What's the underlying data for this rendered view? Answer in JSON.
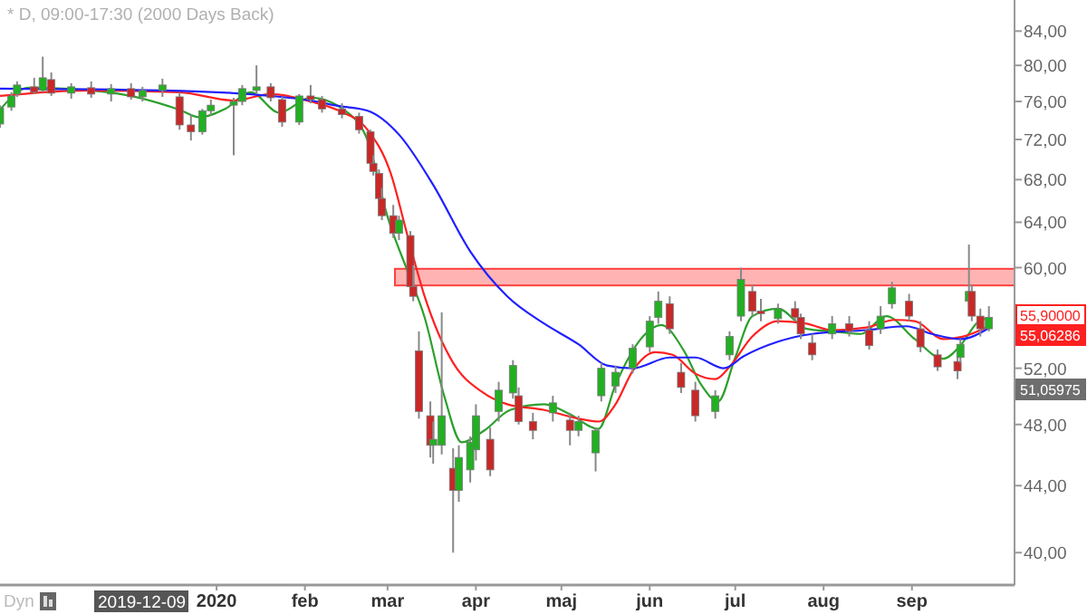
{
  "chart_data": {
    "type": "candlestick",
    "title": "* D, 09:00-17:30 (2000 Days Back)",
    "x": [
      "2019-10-17",
      "2019-10-21",
      "2019-10-23",
      "2019-10-29",
      "2019-11-01",
      "2019-11-04",
      "2019-11-11",
      "2019-11-18",
      "2019-11-25",
      "2019-12-02",
      "2019-12-06",
      "2019-12-13",
      "2019-12-19",
      "2019-12-23",
      "2019-12-27",
      "2019-12-30",
      "2020-01-07",
      "2020-01-10",
      "2020-01-15",
      "2020-01-20",
      "2020-01-24",
      "2020-01-30",
      "2020-02-03",
      "2020-02-07",
      "2020-02-14",
      "2020-02-20",
      "2020-02-24",
      "2020-02-25",
      "2020-02-27",
      "2020-02-28",
      "2020-03-03",
      "2020-03-05",
      "2020-03-09",
      "2020-03-10",
      "2020-03-12",
      "2020-03-16",
      "2020-03-17",
      "2020-03-20",
      "2020-03-24",
      "2020-03-26",
      "2020-03-30",
      "2020-04-01",
      "2020-04-06",
      "2020-04-09",
      "2020-04-14",
      "2020-04-16",
      "2020-04-21",
      "2020-04-28",
      "2020-05-04",
      "2020-05-07",
      "2020-05-13",
      "2020-05-15",
      "2020-05-20",
      "2020-05-26",
      "2020-06-01",
      "2020-06-04",
      "2020-06-08",
      "2020-06-12",
      "2020-06-17",
      "2020-06-24",
      "2020-06-29",
      "2020-07-03",
      "2020-07-07",
      "2020-07-10",
      "2020-07-16",
      "2020-07-22",
      "2020-07-24",
      "2020-07-28",
      "2020-08-04",
      "2020-08-10",
      "2020-08-17",
      "2020-08-21",
      "2020-08-25",
      "2020-08-31",
      "2020-09-04",
      "2020-09-10",
      "2020-09-17",
      "2020-09-18",
      "2020-09-21",
      "2020-09-22",
      "2020-09-25",
      "2020-09-28"
    ],
    "ohlc": [
      [
        73.6,
        75.6,
        73.2,
        75.3
      ],
      [
        75.4,
        77.0,
        75.0,
        76.6
      ],
      [
        76.8,
        78.2,
        76.5,
        77.8
      ],
      [
        77.6,
        78.6,
        76.8,
        77.0
      ],
      [
        77.2,
        81.0,
        77.0,
        78.6
      ],
      [
        78.4,
        79.2,
        76.6,
        76.9
      ],
      [
        76.9,
        78.0,
        76.3,
        77.6
      ],
      [
        77.5,
        78.2,
        76.4,
        76.8
      ],
      [
        76.8,
        77.9,
        76.0,
        77.4
      ],
      [
        77.4,
        78.0,
        76.2,
        76.5
      ],
      [
        76.5,
        77.6,
        76.0,
        77.2
      ],
      [
        77.2,
        78.5,
        76.5,
        77.8
      ],
      [
        76.5,
        77.0,
        73.0,
        73.5
      ],
      [
        73.5,
        74.6,
        71.9,
        72.8
      ],
      [
        72.8,
        75.2,
        72.5,
        75.0
      ],
      [
        75.0,
        76.2,
        74.5,
        75.6
      ],
      [
        75.6,
        76.4,
        70.4,
        76.0
      ],
      [
        76.0,
        77.8,
        75.6,
        77.4
      ],
      [
        77.2,
        80.0,
        76.8,
        77.6
      ],
      [
        77.6,
        78.0,
        76.0,
        76.4
      ],
      [
        76.2,
        76.5,
        73.3,
        73.8
      ],
      [
        73.8,
        76.8,
        73.5,
        76.6
      ],
      [
        76.6,
        77.8,
        75.8,
        76.2
      ],
      [
        76.2,
        76.6,
        74.8,
        75.2
      ],
      [
        75.2,
        75.8,
        74.2,
        74.6
      ],
      [
        74.4,
        74.8,
        72.6,
        73.0
      ],
      [
        72.8,
        73.0,
        69.2,
        69.6
      ],
      [
        69.6,
        70.4,
        68.4,
        68.8
      ],
      [
        68.6,
        69.0,
        65.8,
        66.2
      ],
      [
        66.2,
        67.2,
        64.2,
        64.6
      ],
      [
        64.6,
        65.6,
        62.6,
        63.0
      ],
      [
        63.0,
        64.6,
        62.4,
        64.2
      ],
      [
        62.8,
        63.2,
        58.0,
        58.4
      ],
      [
        58.4,
        60.2,
        57.2,
        57.6
      ],
      [
        53.3,
        54.8,
        48.4,
        48.9
      ],
      [
        48.6,
        49.6,
        45.8,
        46.6
      ],
      [
        46.6,
        48.2,
        45.4,
        47.0
      ],
      [
        46.6,
        56.3,
        46.0,
        48.6
      ],
      [
        45.1,
        46.4,
        40.0,
        43.7
      ],
      [
        43.7,
        46.6,
        43.0,
        45.8
      ],
      [
        45.0,
        47.2,
        44.2,
        46.8
      ],
      [
        46.3,
        49.4,
        45.6,
        48.6
      ],
      [
        47.0,
        47.8,
        44.6,
        45.0
      ],
      [
        48.9,
        51.0,
        48.2,
        50.4
      ],
      [
        50.2,
        52.6,
        49.8,
        52.2
      ],
      [
        50.0,
        50.6,
        48.0,
        48.2
      ],
      [
        48.2,
        48.8,
        47.0,
        47.6
      ],
      [
        48.8,
        50.0,
        48.2,
        49.5
      ],
      [
        48.3,
        48.8,
        46.6,
        47.6
      ],
      [
        47.6,
        48.6,
        47.2,
        48.2
      ],
      [
        46.1,
        47.8,
        44.9,
        47.6
      ],
      [
        50.0,
        52.4,
        49.6,
        52.0
      ],
      [
        50.7,
        52.2,
        50.2,
        51.7
      ],
      [
        52.0,
        53.8,
        51.6,
        53.5
      ],
      [
        53.6,
        56.0,
        53.2,
        55.6
      ],
      [
        55.9,
        58.0,
        55.4,
        57.2
      ],
      [
        57.0,
        57.6,
        54.6,
        55.0
      ],
      [
        51.7,
        52.4,
        50.2,
        50.6
      ],
      [
        50.4,
        51.0,
        48.2,
        48.6
      ],
      [
        48.9,
        50.4,
        48.4,
        50.0
      ],
      [
        53.0,
        54.8,
        52.6,
        54.4
      ],
      [
        56.0,
        60.0,
        55.6,
        59.0
      ],
      [
        58.0,
        58.6,
        56.0,
        56.4
      ],
      [
        56.4,
        57.4,
        55.6,
        56.2
      ],
      [
        55.8,
        57.0,
        55.4,
        56.6
      ],
      [
        56.6,
        57.2,
        55.6,
        55.9
      ],
      [
        55.9,
        56.2,
        54.2,
        54.6
      ],
      [
        53.9,
        54.6,
        52.6,
        53.0
      ],
      [
        54.6,
        56.0,
        54.2,
        55.4
      ],
      [
        55.4,
        56.0,
        54.4,
        54.8
      ],
      [
        54.9,
        55.6,
        53.4,
        53.7
      ],
      [
        55.0,
        56.8,
        54.6,
        56.0
      ],
      [
        57.0,
        58.8,
        56.6,
        58.3
      ],
      [
        57.2,
        57.8,
        55.6,
        56.0
      ],
      [
        55.0,
        55.6,
        53.2,
        53.6
      ],
      [
        53.0,
        53.4,
        51.8,
        52.1
      ],
      [
        52.5,
        52.8,
        51.2,
        51.8
      ],
      [
        52.8,
        54.2,
        52.4,
        53.8
      ],
      [
        57.2,
        62.0,
        56.8,
        58.0
      ],
      [
        58.0,
        58.6,
        55.6,
        56.0
      ],
      [
        56.0,
        56.6,
        54.4,
        55.0
      ],
      [
        55.0,
        56.8,
        54.8,
        55.9
      ]
    ],
    "series": [
      {
        "type": "line",
        "color": "#2ca02c",
        "x": [
          "2019-10-17",
          "2019-10-27",
          "2019-11-24",
          "2019-12-19",
          "2019-12-26",
          "2020-01-04",
          "2020-01-13",
          "2020-01-23",
          "2020-02-03",
          "2020-02-16",
          "2020-02-23",
          "2020-03-01",
          "2020-03-08",
          "2020-03-14",
          "2020-03-21",
          "2020-03-27",
          "2020-04-04",
          "2020-04-13",
          "2020-04-25",
          "2020-05-04",
          "2020-05-14",
          "2020-05-20",
          "2020-05-30",
          "2020-06-05",
          "2020-06-13",
          "2020-06-19",
          "2020-06-25",
          "2020-07-01",
          "2020-07-07",
          "2020-07-16",
          "2020-07-26",
          "2020-08-04",
          "2020-08-14",
          "2020-08-23",
          "2020-09-02",
          "2020-09-12",
          "2020-09-18",
          "2020-09-24",
          "2020-09-28"
        ],
        "values": [
          75.1,
          77.5,
          77.0,
          75.1,
          74.3,
          75.2,
          77.0,
          74.8,
          76.4,
          74.8,
          71.9,
          64.5,
          59.7,
          55.9,
          49.9,
          46.8,
          47.6,
          49.0,
          49.4,
          48.7,
          47.7,
          50.8,
          54.5,
          55.3,
          53.3,
          50.8,
          49.6,
          52.8,
          56.0,
          56.6,
          55.0,
          54.8,
          54.6,
          56.0,
          54.2,
          52.7,
          53.7,
          55.5,
          55.9
        ]
      },
      {
        "type": "line",
        "color": "#ff2020",
        "x": [
          "2019-10-17",
          "2019-11-17",
          "2019-12-19",
          "2020-01-07",
          "2020-01-20",
          "2020-02-03",
          "2020-02-13",
          "2020-02-23",
          "2020-03-02",
          "2020-03-08",
          "2020-03-14",
          "2020-03-24",
          "2020-04-03",
          "2020-04-12",
          "2020-04-25",
          "2020-05-07",
          "2020-05-14",
          "2020-05-20",
          "2020-05-26",
          "2020-06-03",
          "2020-06-09",
          "2020-06-17",
          "2020-06-24",
          "2020-06-29",
          "2020-07-07",
          "2020-07-16",
          "2020-07-26",
          "2020-08-04",
          "2020-08-16",
          "2020-08-26",
          "2020-09-02",
          "2020-09-12",
          "2020-09-19",
          "2020-09-28"
        ],
        "values": [
          76.6,
          77.2,
          77.0,
          76.1,
          76.8,
          76.0,
          75.0,
          73.0,
          68.7,
          62.8,
          57.6,
          52.4,
          50.3,
          49.4,
          49.0,
          48.4,
          48.2,
          49.4,
          51.8,
          53.2,
          53.0,
          51.6,
          51.2,
          52.1,
          54.4,
          55.6,
          55.4,
          54.9,
          55.1,
          55.7,
          55.6,
          54.2,
          54.4,
          55.2
        ]
      },
      {
        "type": "line",
        "color": "#2020ff",
        "x": [
          "2019-10-17",
          "2019-12-13",
          "2020-01-20",
          "2020-02-03",
          "2020-02-13",
          "2020-02-23",
          "2020-03-05",
          "2020-03-17",
          "2020-03-30",
          "2020-04-12",
          "2020-04-25",
          "2020-05-07",
          "2020-05-17",
          "2020-05-26",
          "2020-06-08",
          "2020-06-17",
          "2020-06-27",
          "2020-07-04",
          "2020-07-16",
          "2020-07-28",
          "2020-08-16",
          "2020-08-30",
          "2020-09-08",
          "2020-09-18",
          "2020-09-28"
        ],
        "values": [
          77.4,
          77.2,
          76.6,
          76.1,
          75.5,
          75.0,
          72.5,
          67.5,
          61.4,
          57.6,
          55.4,
          53.8,
          52.2,
          52.0,
          52.8,
          52.8,
          52.0,
          52.9,
          54.0,
          54.6,
          54.9,
          55.2,
          54.6,
          54.2,
          55.06
        ]
      }
    ],
    "xlim": [
      "2019-10-17",
      "2020-10-07"
    ],
    "ylim": [
      38.2,
      87.8
    ],
    "log": true,
    "xticks": [
      {
        "value": "2020-01-01",
        "label": "2020"
      },
      {
        "value": "2020-02-01",
        "label": "feb"
      },
      {
        "value": "2020-03-01",
        "label": "mar"
      },
      {
        "value": "2020-04-01",
        "label": "apr"
      },
      {
        "value": "2020-05-01",
        "label": "maj"
      },
      {
        "value": "2020-06-01",
        "label": "jun"
      },
      {
        "value": "2020-07-01",
        "label": "jul"
      },
      {
        "value": "2020-08-01",
        "label": "aug"
      },
      {
        "value": "2020-09-01",
        "label": "sep"
      }
    ],
    "yticks": [
      {
        "value": 40,
        "label": "40,00"
      },
      {
        "value": 44,
        "label": "44,00"
      },
      {
        "value": 48,
        "label": "48,00"
      },
      {
        "value": 52,
        "label": "52,00"
      },
      {
        "value": 56,
        "label": null
      },
      {
        "value": 60,
        "label": "60,00"
      },
      {
        "value": 64,
        "label": "64,00"
      },
      {
        "value": 68,
        "label": "68,00"
      },
      {
        "value": 72,
        "label": "72,00"
      },
      {
        "value": 76,
        "label": "76,00"
      },
      {
        "value": 80,
        "label": "80,00"
      },
      {
        "value": 84,
        "label": "84,00"
      }
    ],
    "bands": [
      {
        "axis": "y",
        "from": 58.5,
        "to": 59.9,
        "color": "#ff4040"
      }
    ],
    "annotations": [
      "55,90000",
      "55,06286",
      "51,05975",
      "2019-12-09",
      "Dyn"
    ]
  }
}
